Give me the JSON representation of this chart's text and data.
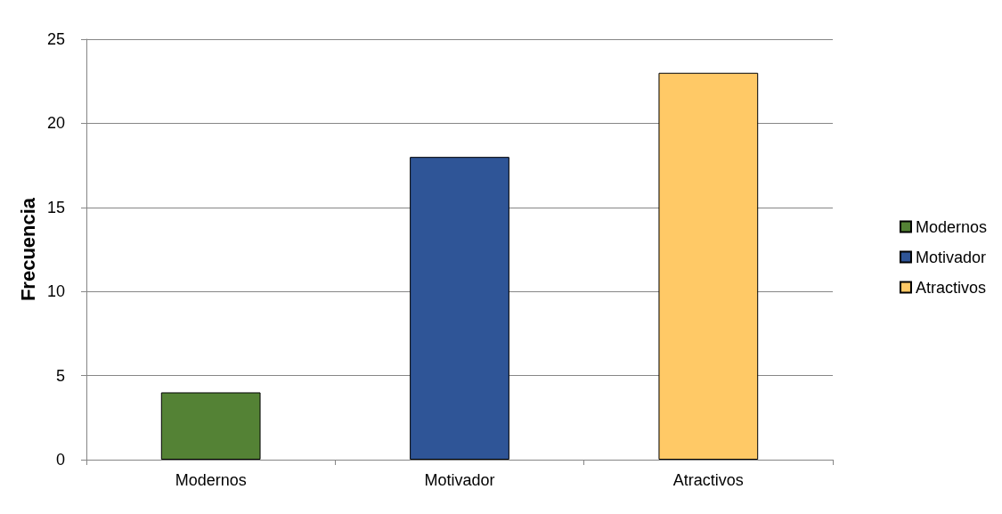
{
  "chart_data": {
    "type": "bar",
    "ylabel": "Frecuencia",
    "categories": [
      "Modernos",
      "Motivador",
      "Atractivos"
    ],
    "stacked": true,
    "series": [
      {
        "name": "Modernos",
        "color": "#548235",
        "values": [
          4,
          null,
          null
        ]
      },
      {
        "name": "Motivador",
        "color": "#2f5597",
        "values": [
          null,
          18,
          null
        ]
      },
      {
        "name": "Atractivos",
        "color": "#ffc966",
        "values": [
          null,
          null,
          23
        ]
      }
    ],
    "ylim": [
      0,
      25
    ],
    "yticks": [
      0,
      5,
      10,
      15,
      20,
      25
    ],
    "grid": "y",
    "legend": "right"
  }
}
